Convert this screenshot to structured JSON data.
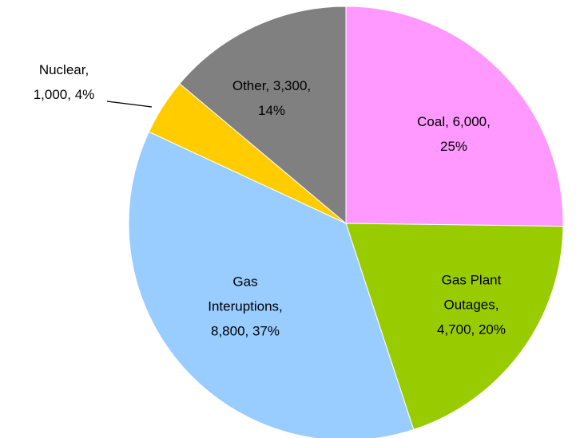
{
  "chart_data": {
    "type": "pie",
    "categories": [
      "Coal",
      "Gas Plant Outages",
      "Gas Interuptions",
      "Nuclear",
      "Other"
    ],
    "values": [
      6000,
      4700,
      8800,
      1000,
      3300
    ],
    "value_labels": [
      [
        "Coal, 6,000,",
        "25%"
      ],
      [
        "Gas Plant",
        "Outages,",
        "4,700, 20%"
      ],
      [
        "Gas",
        "Interuptions,",
        "8,800, 37%"
      ],
      [
        "Nuclear,",
        "1,000, 4%"
      ],
      [
        "Other, 3,300,",
        "14%"
      ]
    ],
    "colors": [
      "#ff99ff",
      "#99cc00",
      "#99ccff",
      "#ffcc00",
      "#808080"
    ]
  }
}
